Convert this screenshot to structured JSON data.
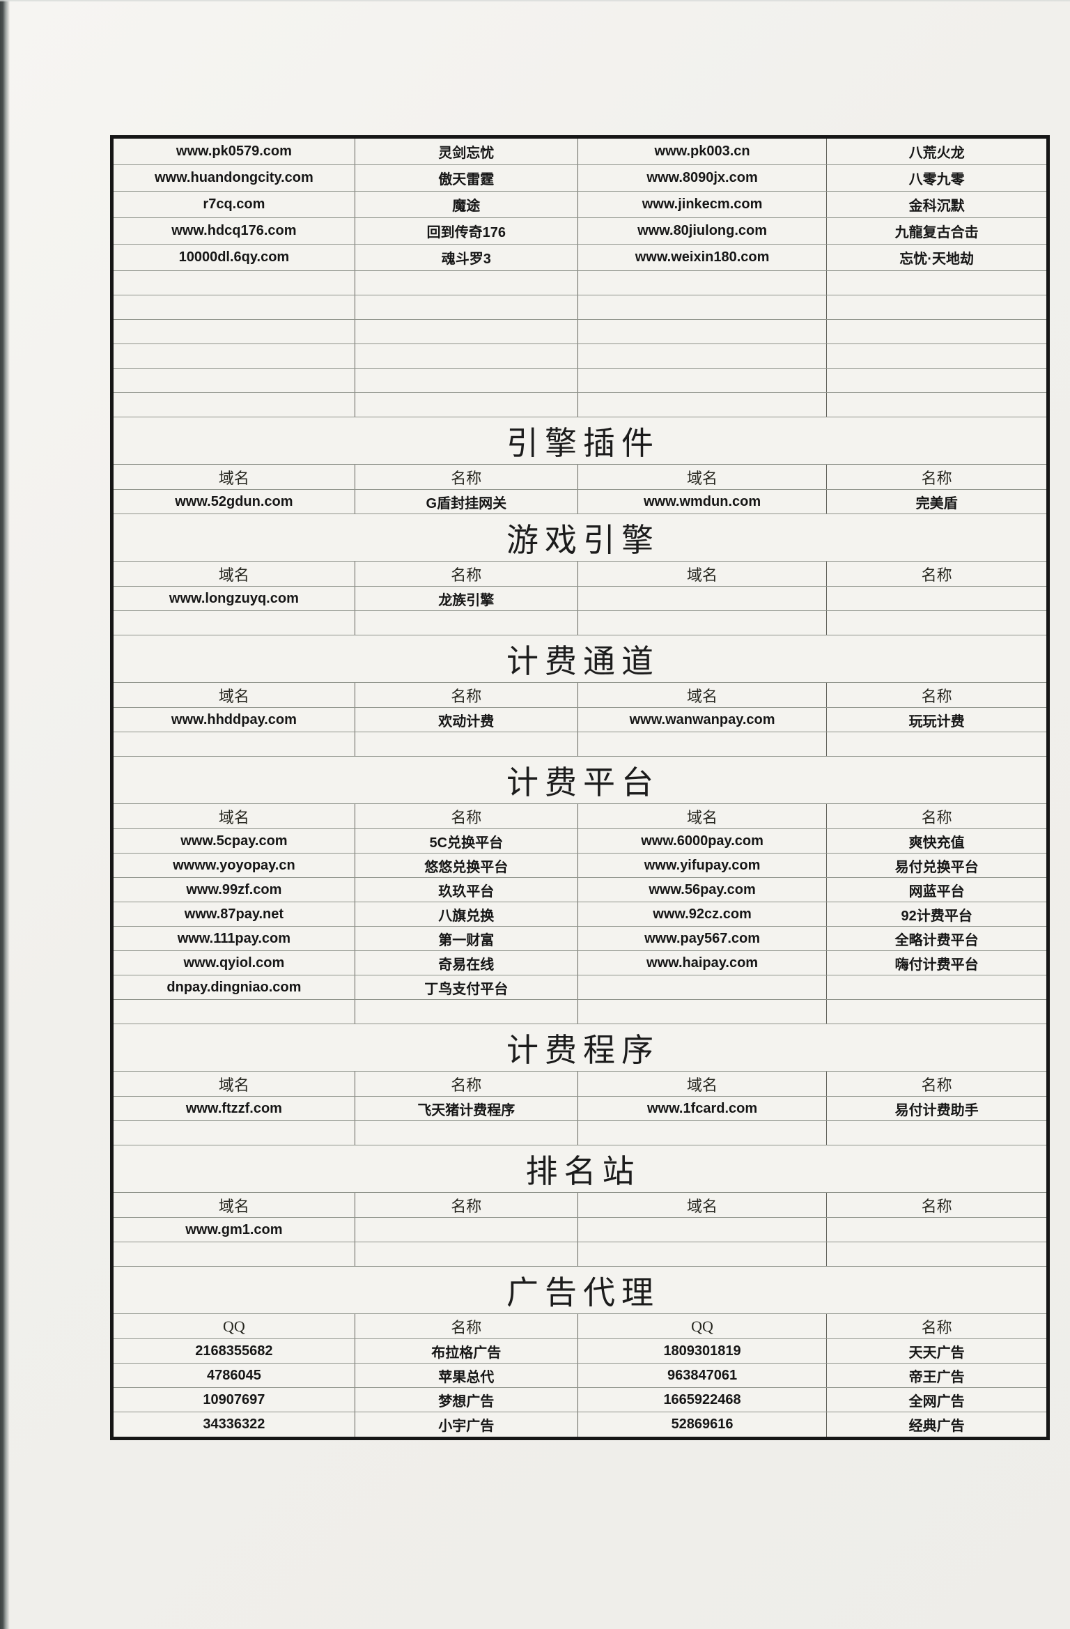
{
  "page": {
    "kind": "scanned paper list of private game server domains",
    "paper_color": "#f2f1ed",
    "edge_strip_color": "#3d4342",
    "table_border_color": "#161616",
    "grid_line_color": "#8e928a",
    "column_divider_color": "#5f5f58",
    "text_color": "#161616"
  },
  "table": {
    "blocks": [
      {
        "type": "rows",
        "tall": true,
        "rows": [
          [
            "www.pk0579.com",
            "灵剑忘忧",
            "www.pk003.cn",
            "八荒火龙"
          ],
          [
            "www.huandongcity.com",
            "傲天雷霆",
            "www.8090jx.com",
            "八零九零"
          ],
          [
            "r7cq.com",
            "魔途",
            "www.jinkecm.com",
            "金科沉默"
          ],
          [
            "www.hdcq176.com",
            "回到传奇176",
            "www.80jiulong.com",
            "九龍复古合击"
          ],
          [
            "10000dl.6qy.com",
            "魂斗罗3",
            "www.weixin180.com",
            "忘忧·天地劫"
          ]
        ]
      },
      {
        "type": "empty",
        "count": 6
      },
      {
        "type": "title",
        "text": "引擎插件"
      },
      {
        "type": "header",
        "cells": [
          "域名",
          "名称",
          "域名",
          "名称"
        ]
      },
      {
        "type": "rows",
        "rows": [
          [
            "www.52gdun.com",
            "G盾封挂网关",
            "www.wmdun.com",
            "完美盾"
          ]
        ]
      },
      {
        "type": "title",
        "text": "游戏引擎"
      },
      {
        "type": "header",
        "cells": [
          "域名",
          "名称",
          "域名",
          "名称"
        ]
      },
      {
        "type": "rows",
        "rows": [
          [
            "www.longzuyq.com",
            "龙族引擎",
            "",
            ""
          ]
        ]
      },
      {
        "type": "empty",
        "count": 1
      },
      {
        "type": "title",
        "text": "计费通道"
      },
      {
        "type": "header",
        "cells": [
          "域名",
          "名称",
          "域名",
          "名称"
        ]
      },
      {
        "type": "rows",
        "rows": [
          [
            "www.hhddpay.com",
            "欢动计费",
            "www.wanwanpay.com",
            "玩玩计费"
          ]
        ]
      },
      {
        "type": "empty",
        "count": 1
      },
      {
        "type": "title",
        "text": "计费平台"
      },
      {
        "type": "header",
        "cells": [
          "域名",
          "名称",
          "域名",
          "名称"
        ]
      },
      {
        "type": "rows",
        "rows": [
          [
            "www.5cpay.com",
            "5C兑换平台",
            "www.6000pay.com",
            "爽快充值"
          ],
          [
            "wwww.yoyopay.cn",
            "悠悠兑换平台",
            "www.yifupay.com",
            "易付兑换平台"
          ],
          [
            "www.99zf.com",
            "玖玖平台",
            "www.56pay.com",
            "网蓝平台"
          ],
          [
            "www.87pay.net",
            "八旗兑换",
            "www.92cz.com",
            "92计费平台"
          ],
          [
            "www.111pay.com",
            "第一财富",
            "www.pay567.com",
            "全略计费平台"
          ],
          [
            "www.qyiol.com",
            "奇易在线",
            "www.haipay.com",
            "嗨付计费平台"
          ],
          [
            "dnpay.dingniao.com",
            "丁鸟支付平台",
            "",
            ""
          ]
        ]
      },
      {
        "type": "empty",
        "count": 1
      },
      {
        "type": "title",
        "text": "计费程序"
      },
      {
        "type": "header",
        "cells": [
          "域名",
          "名称",
          "域名",
          "名称"
        ]
      },
      {
        "type": "rows",
        "rows": [
          [
            "www.ftzzf.com",
            "飞天猪计费程序",
            "www.1fcard.com",
            "易付计费助手"
          ]
        ]
      },
      {
        "type": "empty",
        "count": 1
      },
      {
        "type": "title",
        "text": "排名站"
      },
      {
        "type": "header",
        "cells": [
          "域名",
          "名称",
          "域名",
          "名称"
        ]
      },
      {
        "type": "rows",
        "rows": [
          [
            "www.gm1.com",
            "",
            "",
            ""
          ]
        ]
      },
      {
        "type": "empty",
        "count": 1
      },
      {
        "type": "title",
        "text": "广告代理"
      },
      {
        "type": "header",
        "cells": [
          "QQ",
          "名称",
          "QQ",
          "名称"
        ]
      },
      {
        "type": "rows",
        "rows": [
          [
            "2168355682",
            "布拉格广告",
            "1809301819",
            "天天广告"
          ],
          [
            "4786045",
            "苹果总代",
            "963847061",
            "帝王广告"
          ],
          [
            "10907697",
            "梦想广告",
            "1665922468",
            "全网广告"
          ],
          [
            "34336322",
            "小宇广告",
            "52869616",
            "经典广告"
          ]
        ]
      }
    ]
  }
}
